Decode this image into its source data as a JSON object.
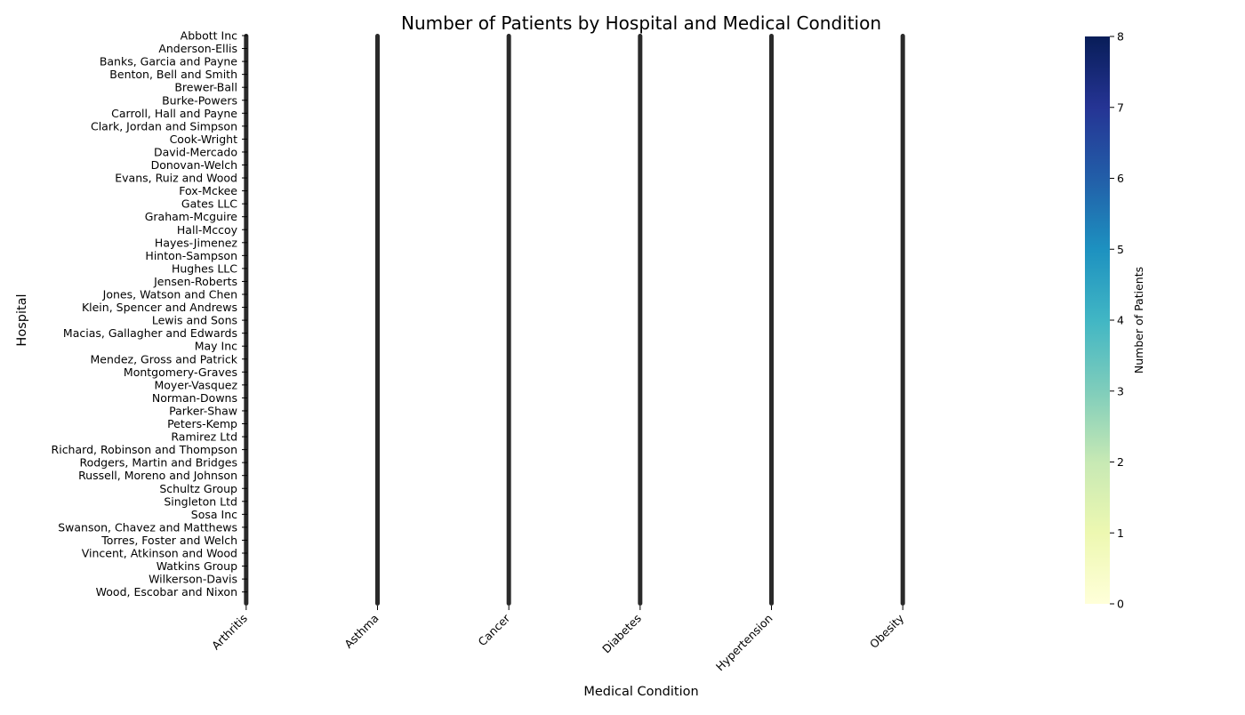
{
  "chart_data": {
    "type": "heatmap",
    "title": "Number of Patients by Hospital and Medical Condition",
    "xlabel": "Medical Condition",
    "ylabel": "Hospital",
    "x_categories": [
      "Arthritis",
      "Asthma",
      "Cancer",
      "Diabetes",
      "Hypertension",
      "Obesity"
    ],
    "y_tick_labels": [
      "Abbott Inc",
      "Anderson-Ellis",
      "Banks, Garcia and Payne",
      "Benton, Bell and Smith",
      "Brewer-Ball",
      "Burke-Powers",
      "Carroll, Hall and Payne",
      "Clark, Jordan and Simpson",
      "Cook-Wright",
      "David-Mercado",
      "Donovan-Welch",
      "Evans, Ruiz and Wood",
      "Fox-Mckee",
      "Gates LLC",
      "Graham-Mcguire",
      "Hall-Mccoy",
      "Hayes-Jimenez",
      "Hinton-Sampson",
      "Hughes LLC",
      "Jensen-Roberts",
      "Jones, Watson and Chen",
      "Klein, Spencer and Andrews",
      "Lewis and Sons",
      "Macias, Gallagher and Edwards",
      "May Inc",
      "Mendez, Gross and Patrick",
      "Montgomery-Graves",
      "Moyer-Vasquez",
      "Norman-Downs",
      "Parker-Shaw",
      "Peters-Kemp",
      "Ramirez Ltd",
      "Richard, Robinson and Thompson",
      "Rodgers, Martin and Bridges",
      "Russell, Moreno and Johnson",
      "Schultz Group",
      "Singleton Ltd",
      "Sosa Inc",
      "Swanson, Chavez and Matthews",
      "Torres, Foster and Welch",
      "Vincent, Atkinson and Wood",
      "Watkins Group",
      "Wilkerson-Davis",
      "Wood, Escobar and Nixon"
    ],
    "colorbar": {
      "label": "Number of Patients",
      "range": [
        0,
        8
      ],
      "ticks": [
        "0",
        "1",
        "2",
        "3",
        "4",
        "5",
        "6",
        "7",
        "8"
      ],
      "colormap": [
        "#ffffd9",
        "#edf8b1",
        "#c7e9b4",
        "#7fcdbb",
        "#41b6c4",
        "#1d91c0",
        "#225ea8",
        "#253494",
        "#081d58"
      ]
    },
    "cell_line_color": "#2a2a2a",
    "grid": false,
    "legend": "colorbar-right"
  }
}
